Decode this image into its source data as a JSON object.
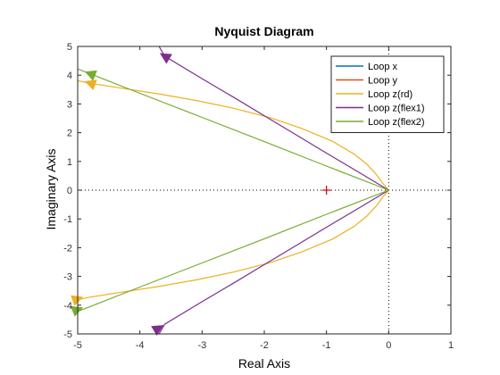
{
  "chart_data": {
    "type": "line",
    "title": "Nyquist Diagram",
    "xlabel": "Real Axis",
    "ylabel": "Imaginary Axis",
    "xlim": [
      -5,
      1
    ],
    "ylim": [
      -5,
      5
    ],
    "xticks": [
      -5,
      -4,
      -3,
      -2,
      -1,
      0,
      1
    ],
    "yticks": [
      -5,
      -4,
      -3,
      -2,
      -1,
      0,
      1,
      2,
      3,
      4,
      5
    ],
    "xtick_labels": [
      "-5",
      "-4",
      "-3",
      "-2",
      "-1",
      "0",
      "1"
    ],
    "ytick_labels": [
      "-5",
      "-4",
      "-3",
      "-2",
      "-1",
      "0",
      "1",
      "2",
      "3",
      "4",
      "5"
    ],
    "grid": false,
    "zero_lines": true,
    "critical_point": {
      "x": -1,
      "y": 0,
      "marker": "+",
      "color": "#d00000"
    },
    "legend_position": "top-right",
    "series": [
      {
        "name": "Loop x",
        "color": "#0072BD",
        "x": [
          0,
          0
        ],
        "y": [
          0,
          0
        ]
      },
      {
        "name": "Loop y",
        "color": "#D95319",
        "x": [
          0,
          0
        ],
        "y": [
          0,
          0
        ]
      },
      {
        "name": "Loop z(rd)",
        "color": "#EDB120",
        "x": [
          -5.1,
          -4.8,
          -4.3,
          -3.7,
          -3.1,
          -2.5,
          -1.9,
          -1.4,
          -0.9,
          -0.55,
          -0.35,
          -0.2,
          -0.1,
          0
        ],
        "y": [
          3.85,
          3.72,
          3.55,
          3.35,
          3.12,
          2.85,
          2.52,
          2.15,
          1.7,
          1.25,
          0.9,
          0.55,
          0.25,
          0
        ],
        "mirror": true,
        "arrows_at": [
          {
            "x": -4.8,
            "y": 3.72
          },
          {
            "x": -5.0,
            "y": -3.78
          }
        ]
      },
      {
        "name": "Loop z(flex1)",
        "color": "#7E2F8E",
        "x": [
          -3.8,
          -3.6,
          -3.0,
          -2.5,
          -2.0,
          -1.5,
          -1.0,
          -0.5,
          0
        ],
        "y": [
          5.4,
          4.66,
          3.88,
          3.24,
          2.59,
          1.94,
          1.29,
          0.65,
          0
        ],
        "mirror": true,
        "arrows_at": [
          {
            "x": -3.6,
            "y": 4.66
          },
          {
            "x": -3.7,
            "y": -4.8
          }
        ]
      },
      {
        "name": "Loop z(flex2)",
        "color": "#77AC30",
        "x": [
          -5.1,
          -4.8,
          -4.0,
          -3.0,
          -2.0,
          -1.0,
          0
        ],
        "y": [
          4.3,
          4.05,
          3.37,
          2.53,
          1.69,
          0.84,
          0
        ],
        "mirror": true,
        "arrows_at": [
          {
            "x": -4.8,
            "y": 4.05
          },
          {
            "x": -5.0,
            "y": -4.15
          }
        ]
      }
    ]
  }
}
